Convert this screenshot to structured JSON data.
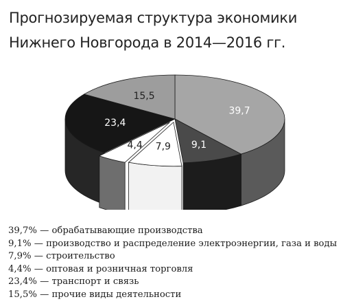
{
  "title": {
    "line1": "Прогнозируемая структура экономики",
    "line2": "Нижнего Новгорода в 2014—2016 гг."
  },
  "chart_data": {
    "type": "pie",
    "style": "3d-exploded",
    "title": "Прогнозируемая структура экономики Нижнего Новгорода в 2014—2016 гг.",
    "slices": [
      {
        "label": "обрабатывающие производства",
        "value": 39.7,
        "display": "39,7",
        "color": "#a6a6a6",
        "side": "#5a5a5a",
        "text_color": "#ffffff"
      },
      {
        "label": "производство и распределение электроэнергии, газа и воды",
        "value": 9.1,
        "display": "9,1",
        "color": "#4a4a4a",
        "side": "#1c1c1c",
        "text_color": "#ffffff"
      },
      {
        "label": "строительство",
        "value": 7.9,
        "display": "7,9",
        "color": "#ffffff",
        "side": "#f2f2f2",
        "text_color": "#222222"
      },
      {
        "label": "оптовая и розничная торговля",
        "value": 4.4,
        "display": "4,4",
        "color": "#ffffff",
        "side": "#6e6e6e",
        "text_color": "#222222"
      },
      {
        "label": "транспорт и связь",
        "value": 23.4,
        "display": "23,4",
        "color": "#161616",
        "side": "#262626",
        "text_color": "#ffffff"
      },
      {
        "label": "прочие виды деятельности",
        "value": 15.5,
        "display": "15,5",
        "color": "#9d9d9d",
        "side": "#555555",
        "text_color": "#222222"
      }
    ],
    "legend_placement": "bottom"
  },
  "legend": [
    "39,7% — обрабатывающие производства",
    "9,1% — производство и распределение электроэнергии, газа и воды",
    "7,9% — строительство",
    "4,4% — оптовая и розничная торговля",
    "23,4% — транспорт и связь",
    "15,5% — прочие виды деятельности"
  ]
}
